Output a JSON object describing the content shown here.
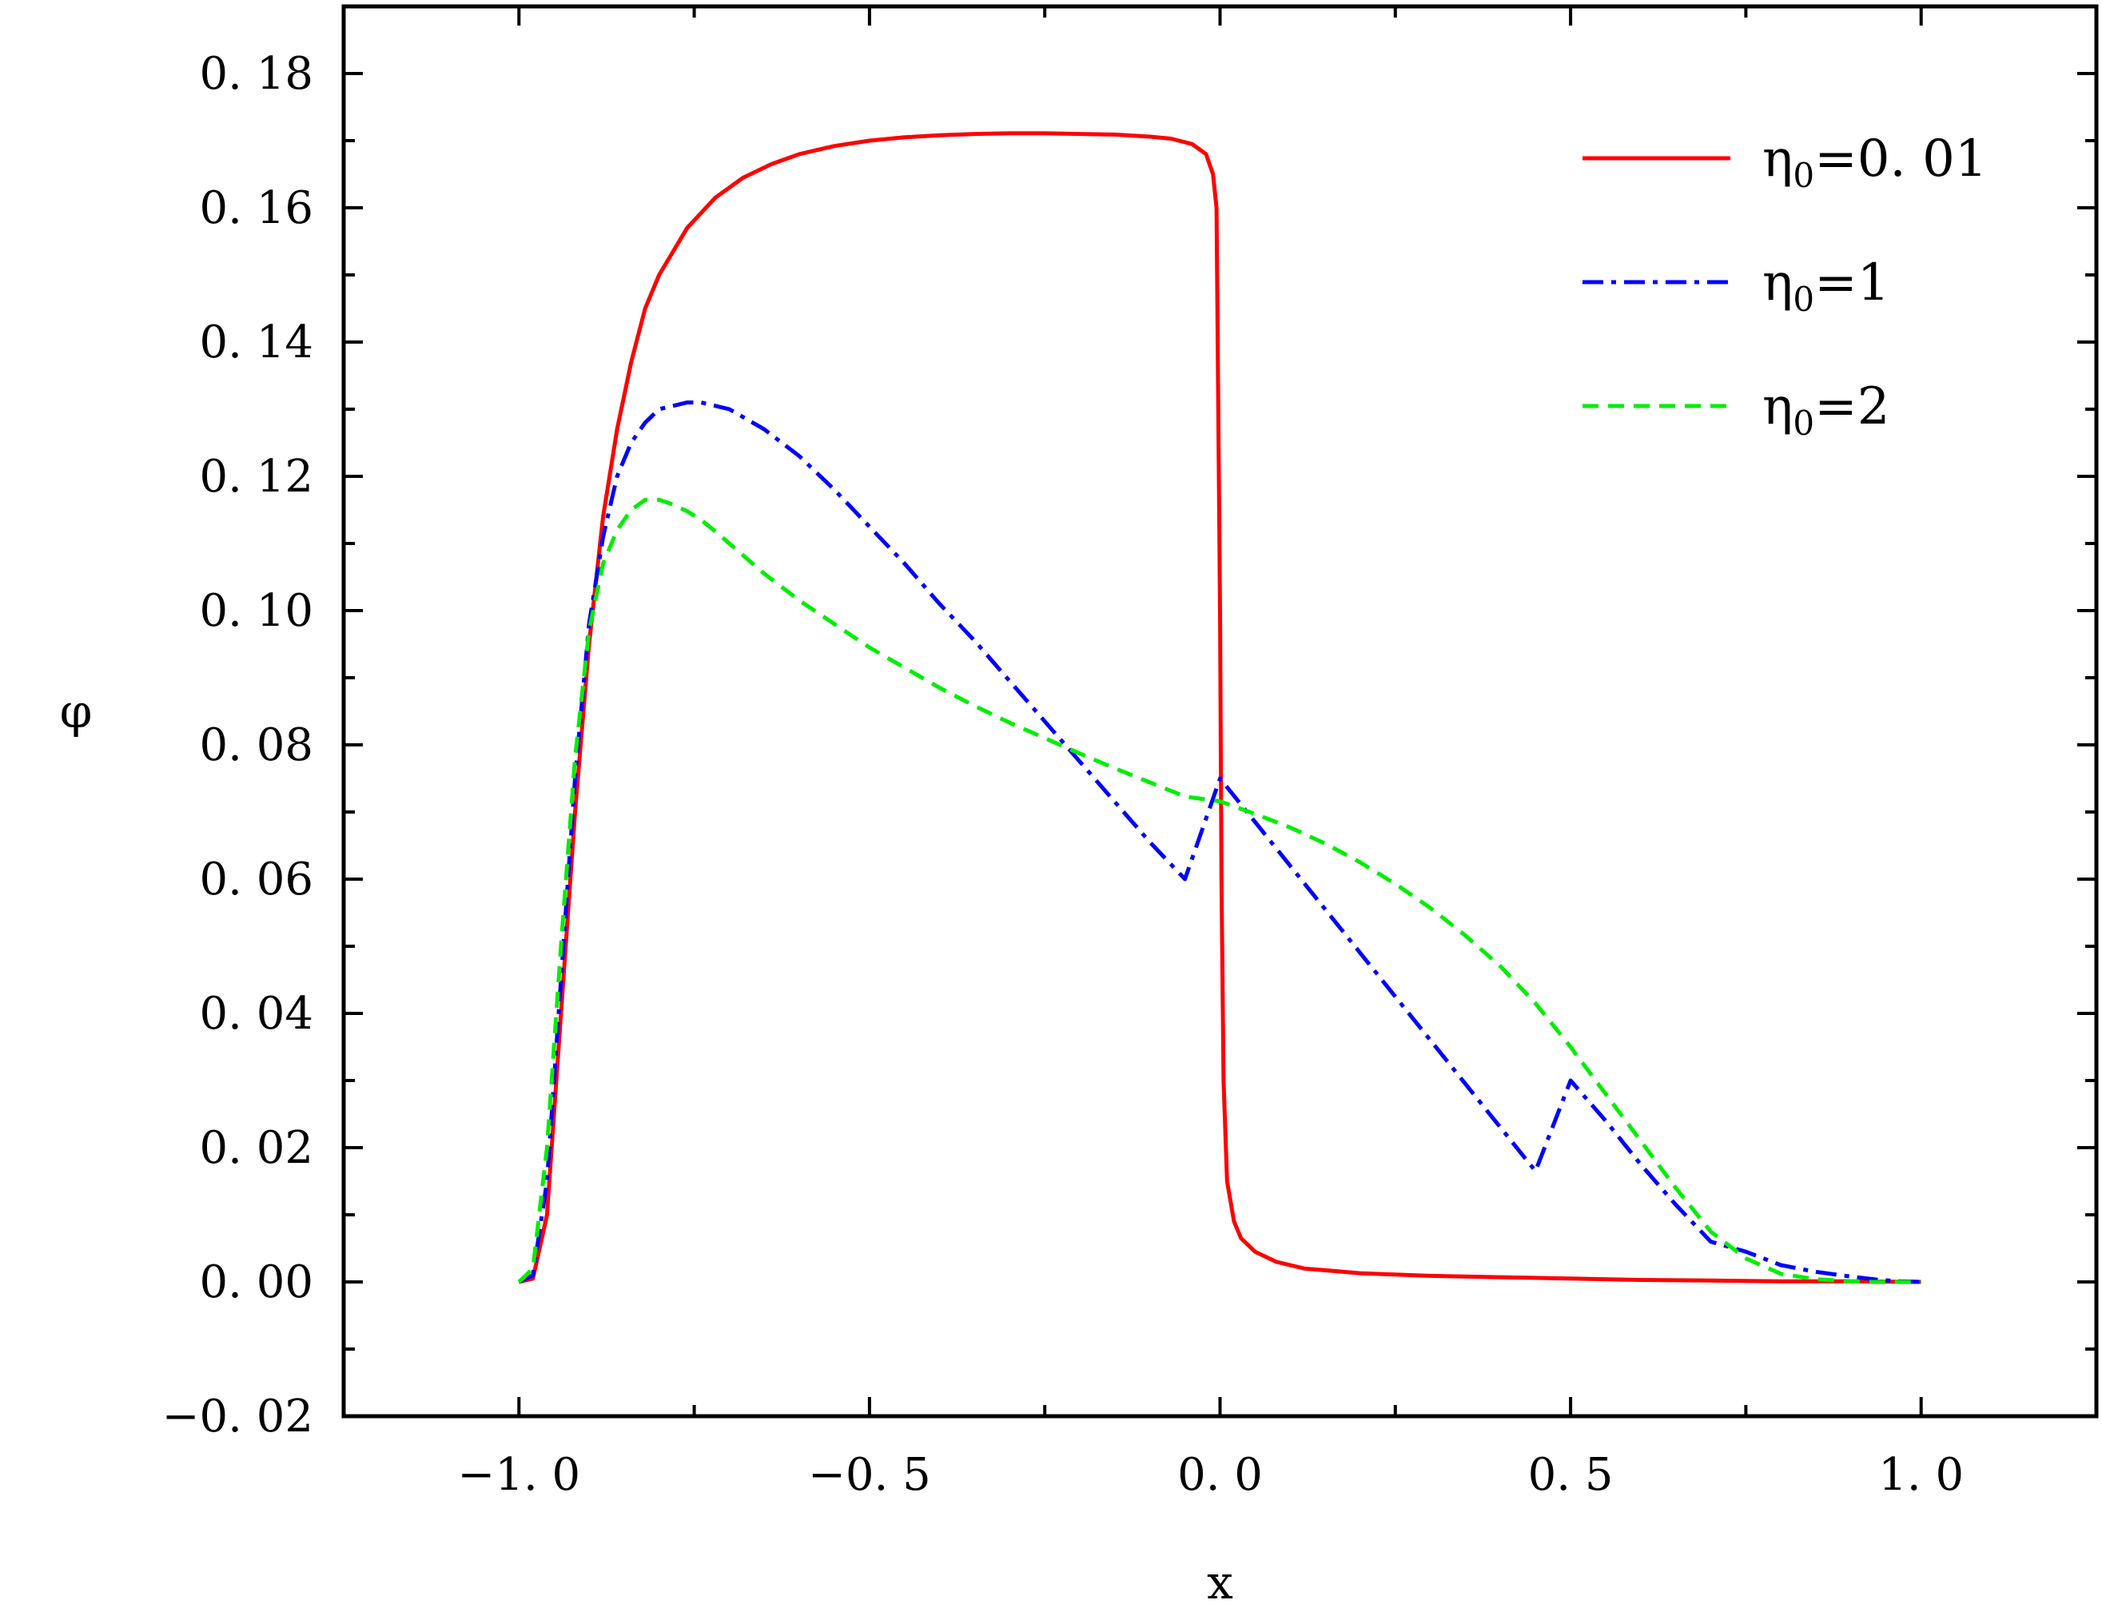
{
  "chart_data": {
    "type": "line",
    "xlabel": "x",
    "ylabel": "φ",
    "xlim": [
      -1.25,
      1.25
    ],
    "ylim": [
      -0.02,
      0.19
    ],
    "x_ticks": [
      -1.0,
      -0.5,
      0.0,
      0.5,
      1.0
    ],
    "x_tick_labels": [
      "−1. 0",
      "−0. 5",
      "0. 0",
      "0. 5",
      "1. 0"
    ],
    "y_ticks": [
      -0.02,
      0.0,
      0.02,
      0.04,
      0.06,
      0.08,
      0.1,
      0.12,
      0.14,
      0.16,
      0.18
    ],
    "y_tick_labels": [
      "−0. 02",
      "0. 00",
      "0. 02",
      "0. 04",
      "0. 06",
      "0. 08",
      "0. 10",
      "0. 12",
      "0. 14",
      "0. 16",
      "0. 18"
    ],
    "grid": false,
    "legend_position": "top-right",
    "series": [
      {
        "legend_symbol": "η",
        "legend_sub": "0",
        "legend_value": "=0. 01",
        "color": "#ff0000",
        "dash": "solid",
        "x": [
          -1.0,
          -0.98,
          -0.96,
          -0.94,
          -0.92,
          -0.9,
          -0.88,
          -0.86,
          -0.84,
          -0.82,
          -0.8,
          -0.76,
          -0.72,
          -0.68,
          -0.64,
          -0.6,
          -0.55,
          -0.5,
          -0.45,
          -0.4,
          -0.35,
          -0.3,
          -0.25,
          -0.2,
          -0.15,
          -0.1,
          -0.07,
          -0.04,
          -0.02,
          -0.01,
          -0.005,
          0.0,
          0.002,
          0.005,
          0.01,
          0.02,
          0.03,
          0.05,
          0.08,
          0.12,
          0.2,
          0.3,
          0.4,
          0.5,
          0.6,
          0.7,
          0.8,
          0.9,
          1.0
        ],
        "y": [
          0.0,
          0.0005,
          0.01,
          0.04,
          0.07,
          0.095,
          0.114,
          0.127,
          0.137,
          0.145,
          0.15,
          0.157,
          0.1615,
          0.1645,
          0.1665,
          0.168,
          0.1692,
          0.17,
          0.1705,
          0.1708,
          0.171,
          0.1711,
          0.1711,
          0.171,
          0.1709,
          0.1706,
          0.1703,
          0.1695,
          0.168,
          0.165,
          0.16,
          0.1,
          0.06,
          0.03,
          0.015,
          0.009,
          0.0065,
          0.0045,
          0.003,
          0.002,
          0.0013,
          0.0009,
          0.0007,
          0.0005,
          0.0003,
          0.0002,
          0.0001,
          0.0001,
          0.0
        ]
      },
      {
        "legend_symbol": "η",
        "legend_sub": "0",
        "legend_value": "=1",
        "color": "#0000ff",
        "dash": "dashdot",
        "x": [
          -1.0,
          -0.98,
          -0.96,
          -0.94,
          -0.92,
          -0.9,
          -0.88,
          -0.86,
          -0.84,
          -0.82,
          -0.8,
          -0.78,
          -0.76,
          -0.74,
          -0.72,
          -0.7,
          -0.65,
          -0.6,
          -0.55,
          -0.5,
          -0.45,
          -0.4,
          -0.35,
          -0.3,
          -0.25,
          -0.2,
          -0.15,
          -0.1,
          -0.05,
          0.0,
          0.05,
          0.1,
          0.15,
          0.2,
          0.25,
          0.3,
          0.35,
          0.4,
          0.45,
          0.5,
          0.55,
          0.6,
          0.65,
          0.7,
          0.75,
          0.8,
          0.85,
          0.9,
          0.94,
          0.97,
          1.0
        ],
        "y": [
          0.0,
          0.001,
          0.015,
          0.045,
          0.075,
          0.098,
          0.111,
          0.12,
          0.125,
          0.128,
          0.13,
          0.1305,
          0.131,
          0.131,
          0.1305,
          0.13,
          0.127,
          0.123,
          0.118,
          0.1125,
          0.107,
          0.101,
          0.0955,
          0.0895,
          0.0835,
          0.0775,
          0.0715,
          0.0655,
          0.06,
          0.075,
          0.0685,
          0.062,
          0.0555,
          0.049,
          0.0425,
          0.036,
          0.0295,
          0.023,
          0.0165,
          0.03,
          0.024,
          0.0175,
          0.0115,
          0.006,
          0.0045,
          0.0025,
          0.0015,
          0.0008,
          0.0003,
          0.0001,
          0.0
        ]
      },
      {
        "legend_symbol": "η",
        "legend_sub": "0",
        "legend_value": "=2",
        "color": "#00ee00",
        "dash": "dashed",
        "x": [
          -1.0,
          -0.98,
          -0.96,
          -0.94,
          -0.92,
          -0.9,
          -0.88,
          -0.86,
          -0.84,
          -0.82,
          -0.8,
          -0.78,
          -0.76,
          -0.74,
          -0.72,
          -0.7,
          -0.65,
          -0.6,
          -0.55,
          -0.5,
          -0.45,
          -0.4,
          -0.35,
          -0.3,
          -0.25,
          -0.2,
          -0.15,
          -0.1,
          -0.05,
          0.0,
          0.05,
          0.1,
          0.15,
          0.2,
          0.25,
          0.3,
          0.35,
          0.4,
          0.45,
          0.5,
          0.55,
          0.6,
          0.65,
          0.7,
          0.75,
          0.8,
          0.85,
          0.9,
          0.93,
          0.96,
          1.0
        ],
        "y": [
          0.0,
          0.002,
          0.02,
          0.05,
          0.078,
          0.097,
          0.107,
          0.112,
          0.115,
          0.1165,
          0.1165,
          0.1158,
          0.1148,
          0.1135,
          0.1118,
          0.11,
          0.1055,
          0.1015,
          0.098,
          0.0945,
          0.0915,
          0.0885,
          0.0858,
          0.0833,
          0.081,
          0.0787,
          0.0765,
          0.0744,
          0.0723,
          0.0716,
          0.0697,
          0.0677,
          0.0653,
          0.0625,
          0.0593,
          0.0557,
          0.0516,
          0.047,
          0.0415,
          0.035,
          0.028,
          0.021,
          0.014,
          0.0075,
          0.0035,
          0.0012,
          0.0004,
          0.0001,
          0.0,
          0.0,
          0.0
        ]
      }
    ]
  }
}
